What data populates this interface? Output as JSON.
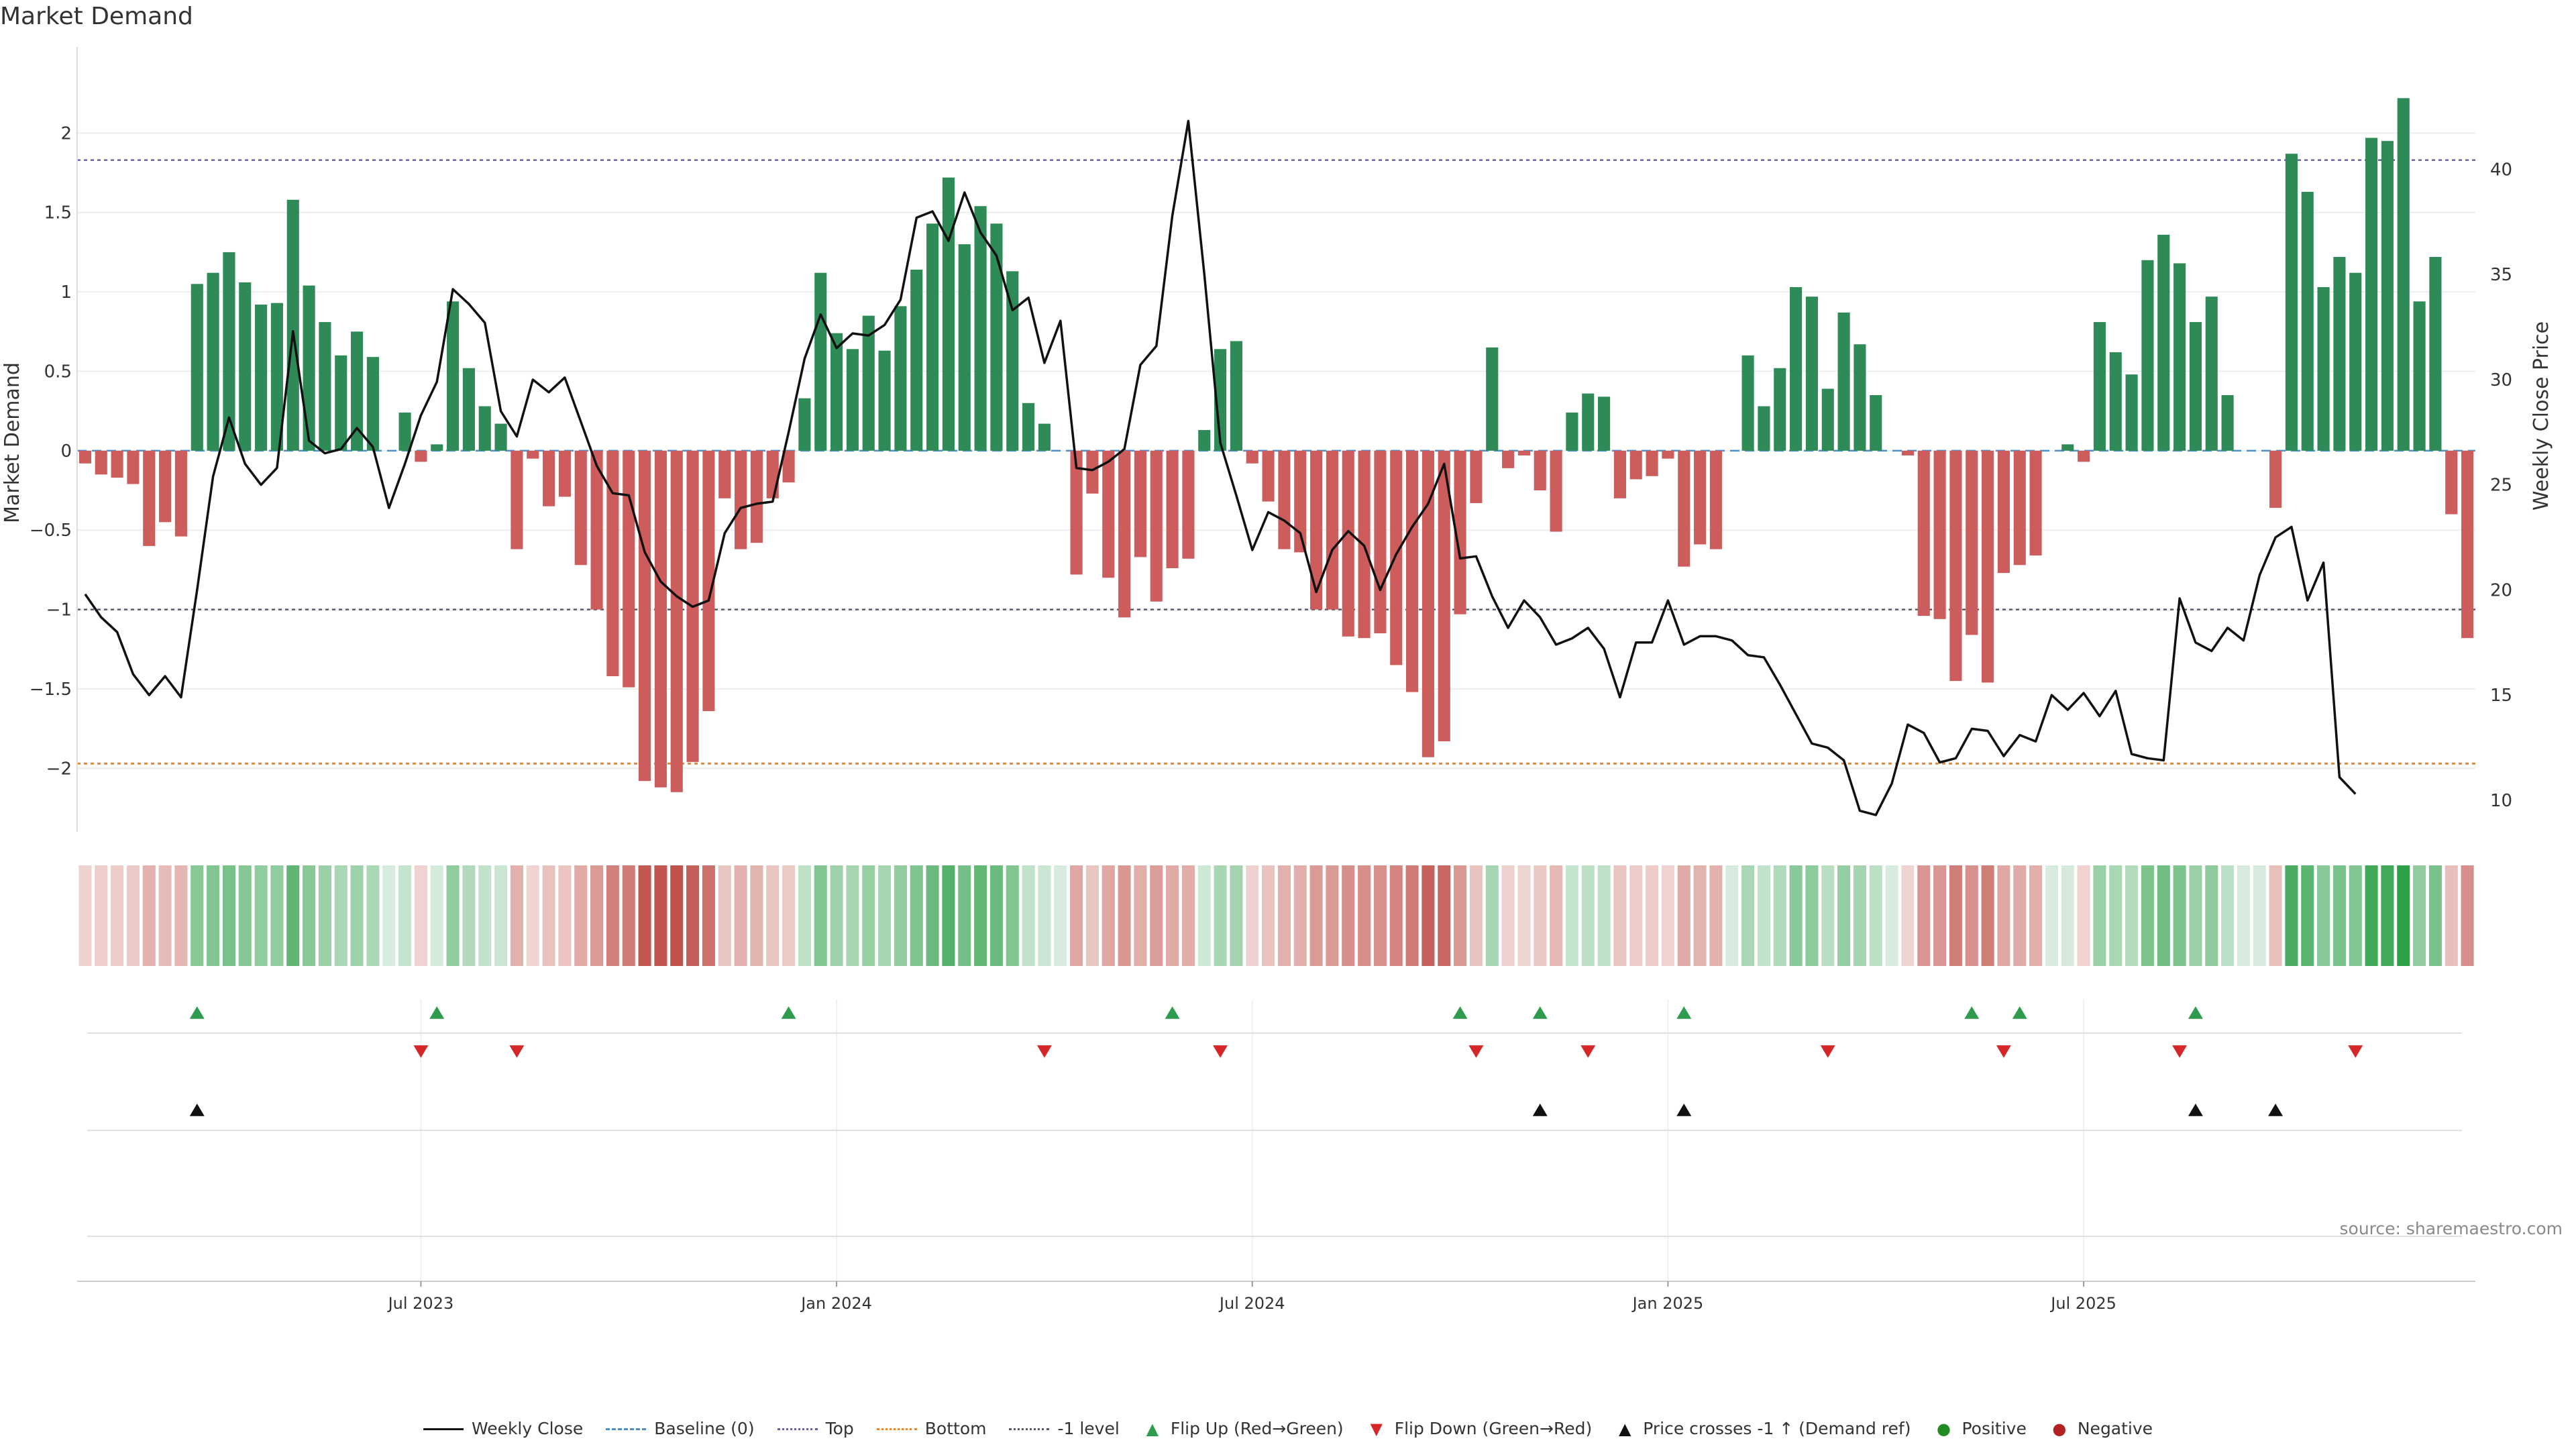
{
  "title": "Market Demand",
  "source": "source: sharemaestro.com",
  "colors": {
    "positive_bar": "#2e8b57",
    "negative_bar": "#cd5c5c",
    "price_line": "#111111",
    "top_line": "#6c5fa3",
    "bottom_line": "#e8872e",
    "minus1_line": "#555a6e",
    "flip_up": "#2e9b4e",
    "flip_down": "#d62728",
    "cross": "#111111",
    "positive_dot": "#228b22",
    "negative_dot": "#b22222",
    "baseline": "#4a8fc7"
  },
  "chart_data": {
    "type": "bar",
    "title": "Market Demand",
    "ylabel": "Market Demand",
    "y2label": "Weekly Close Price",
    "ylim": [
      -2.4,
      2.5
    ],
    "y2lim": [
      8.5,
      45.5
    ],
    "yticks": [
      2,
      1.5,
      1,
      0.5,
      0,
      -0.5,
      -1,
      -1.5,
      -2
    ],
    "ytick_labels": [
      "2",
      "1.5",
      "1",
      "0.5",
      "0",
      "−0.5",
      "−1",
      "−1.5",
      "−2"
    ],
    "y2ticks": [
      40,
      35,
      30,
      25,
      20,
      15,
      10
    ],
    "xtick_labels": [
      "Jul 2023",
      "Jan 2024",
      "Jul 2024",
      "Jan 2025",
      "Jul 2025"
    ],
    "xtick_weeks": [
      21,
      47,
      73,
      99,
      125
    ],
    "reference_lines": {
      "top": 1.83,
      "bottom": -1.97,
      "minus1": -1.0,
      "baseline": 0
    },
    "demand": [
      -0.08,
      -0.15,
      -0.17,
      -0.21,
      -0.6,
      -0.45,
      -0.54,
      1.05,
      1.12,
      1.25,
      1.06,
      0.92,
      0.93,
      1.58,
      1.04,
      0.81,
      0.6,
      0.75,
      0.59,
      0.0,
      0.24,
      -0.07,
      0.04,
      0.94,
      0.52,
      0.28,
      0.17,
      -0.62,
      -0.05,
      -0.35,
      -0.29,
      -0.72,
      -1.0,
      -1.42,
      -1.49,
      -2.08,
      -2.12,
      -2.15,
      -1.96,
      -1.64,
      -0.3,
      -0.62,
      -0.58,
      -0.3,
      -0.2,
      0.33,
      1.12,
      0.74,
      0.64,
      0.85,
      0.63,
      0.91,
      1.14,
      1.43,
      1.72,
      1.3,
      1.54,
      1.43,
      1.13,
      0.3,
      0.17,
      0.0,
      -0.78,
      -0.27,
      -0.8,
      -1.05,
      -0.67,
      -0.95,
      -0.74,
      -0.68,
      0.13,
      0.64,
      0.69,
      -0.08,
      -0.32,
      -0.62,
      -0.64,
      -1.0,
      -1.0,
      -1.17,
      -1.18,
      -1.15,
      -1.35,
      -1.52,
      -1.93,
      -1.83,
      -1.03,
      -0.33,
      0.65,
      -0.11,
      -0.03,
      -0.25,
      -0.51,
      0.24,
      0.36,
      0.34,
      -0.3,
      -0.18,
      -0.16,
      -0.05,
      -0.73,
      -0.59,
      -0.62,
      0.0,
      0.6,
      0.28,
      0.52,
      1.03,
      0.97,
      0.39,
      0.87,
      0.67,
      0.35,
      0.0,
      -0.03,
      -1.04,
      -1.06,
      -1.45,
      -1.16,
      -1.46,
      -0.77,
      -0.72,
      -0.66,
      0.0,
      0.04,
      -0.07,
      0.81,
      0.62,
      0.48,
      1.2,
      1.36,
      1.18,
      0.81,
      0.97,
      0.35,
      0.0,
      0.0,
      -0.36,
      1.87,
      1.63,
      1.03,
      1.22,
      1.12,
      1.97,
      1.95,
      2.22,
      0.94,
      1.22,
      -0.4,
      -1.18
    ],
    "price": [
      19.8,
      18.7,
      18.0,
      16.0,
      15.0,
      15.9,
      14.9,
      20.0,
      25.4,
      28.2,
      26.0,
      25.0,
      25.8,
      32.3,
      27.1,
      26.5,
      26.7,
      27.7,
      26.8,
      23.9,
      26.0,
      28.3,
      29.9,
      34.3,
      33.6,
      32.7,
      28.5,
      27.3,
      30.0,
      29.4,
      30.1,
      28.0,
      25.9,
      24.6,
      24.5,
      21.8,
      20.4,
      19.7,
      19.2,
      19.5,
      22.7,
      23.9,
      24.1,
      24.2,
      27.5,
      31.0,
      33.1,
      31.5,
      32.2,
      32.1,
      32.6,
      33.8,
      37.7,
      38.0,
      36.6,
      38.9,
      37.0,
      35.9,
      33.3,
      33.9,
      30.8,
      32.8,
      25.8,
      25.7,
      26.1,
      26.7,
      30.7,
      31.6,
      37.8,
      42.3,
      35.0,
      27.0,
      24.5,
      21.9,
      23.7,
      23.3,
      22.7,
      19.9,
      21.9,
      22.8,
      22.1,
      20.0,
      21.7,
      23.0,
      24.1,
      26.0,
      21.5,
      21.6,
      19.7,
      18.2,
      19.5,
      18.7,
      17.4,
      17.7,
      18.2,
      17.2,
      14.9,
      17.5,
      17.5,
      19.5,
      17.4,
      17.8,
      17.8,
      17.6,
      16.9,
      16.8,
      15.5,
      14.1,
      12.7,
      12.5,
      11.9,
      9.5,
      9.3,
      10.8,
      13.6,
      13.2,
      11.8,
      12.0,
      13.4,
      13.3,
      12.1,
      13.1,
      12.8,
      15.0,
      14.3,
      15.1,
      14.0,
      15.2,
      12.2,
      12.0,
      11.9,
      19.6,
      17.5,
      17.1,
      18.2,
      17.6,
      20.7,
      22.5,
      23.0,
      19.5,
      21.3,
      11.1,
      10.3
    ],
    "heat_values": [
      -0.08,
      -0.15,
      -0.17,
      -0.21,
      -0.6,
      -0.45,
      -0.54,
      1.05,
      1.12,
      1.25,
      1.06,
      0.92,
      0.93,
      1.58,
      1.04,
      0.81,
      0.6,
      0.75,
      0.59,
      0.0,
      0.24,
      -0.07,
      0.04,
      0.94,
      0.52,
      0.28,
      0.17,
      -0.62,
      -0.05,
      -0.35,
      -0.29,
      -0.72,
      -1.0,
      -1.42,
      -1.49,
      -2.08,
      -2.12,
      -2.15,
      -1.96,
      -1.64,
      -0.3,
      -0.62,
      -0.58,
      -0.3,
      -0.2,
      0.33,
      1.12,
      0.74,
      0.64,
      0.85,
      0.63,
      0.91,
      1.14,
      1.43,
      1.72,
      1.3,
      1.54,
      1.43,
      1.13,
      0.3,
      0.17,
      0.0,
      -0.78,
      -0.27,
      -0.8,
      -1.05,
      -0.67,
      -0.95,
      -0.74,
      -0.68,
      0.13,
      0.64,
      0.69,
      -0.08,
      -0.32,
      -0.62,
      -0.64,
      -1.0,
      -1.0,
      -1.17,
      -1.18,
      -1.15,
      -1.35,
      -1.52,
      -1.93,
      -1.83,
      -1.03,
      -0.33,
      0.65,
      -0.11,
      -0.03,
      -0.25,
      -0.51,
      0.24,
      0.36,
      0.34,
      -0.3,
      -0.18,
      -0.16,
      -0.05,
      -0.73,
      -0.59,
      -0.62,
      0.0,
      0.6,
      0.28,
      0.52,
      1.03,
      0.97,
      0.39,
      0.87,
      0.67,
      0.35,
      0.0,
      -0.03,
      -1.04,
      -1.06,
      -1.45,
      -1.16,
      -1.46,
      -0.77,
      -0.72,
      -0.66,
      0.0,
      0.04,
      -0.07,
      0.81,
      0.62,
      0.48,
      1.2,
      1.36,
      1.18,
      0.81,
      0.97,
      0.35,
      0.0,
      0.0,
      -0.36,
      1.87,
      1.63,
      1.03,
      1.22,
      1.12,
      1.97,
      1.95,
      2.22,
      0.94,
      1.22,
      -0.4,
      -1.18
    ],
    "flip_up_weeks": [
      7,
      22,
      44,
      68,
      86,
      91,
      100,
      118,
      121,
      132
    ],
    "flip_down_weeks": [
      21,
      27,
      60,
      71,
      87,
      94,
      109,
      120,
      131,
      142
    ],
    "cross_weeks": [
      7,
      91,
      100,
      132,
      137
    ]
  },
  "legend": [
    {
      "label": "Weekly Close",
      "style": "solid"
    },
    {
      "label": "Baseline (0)",
      "style": "dash-blue"
    },
    {
      "label": "Top",
      "style": "dot-purple"
    },
    {
      "label": "Bottom",
      "style": "dot-orange"
    },
    {
      "label": "-1 level",
      "style": "dot-gray"
    },
    {
      "label": "Flip Up (Red→Green)",
      "symbol": "▲",
      "color": "#2e9b4e"
    },
    {
      "label": "Flip Down (Green→Red)",
      "symbol": "▼",
      "color": "#d62728"
    },
    {
      "label": "Price crosses -1 ↑ (Demand ref)",
      "symbol": "▲",
      "color": "#111111"
    },
    {
      "label": "Positive",
      "symbol": "●",
      "color": "#228b22"
    },
    {
      "label": "Negative",
      "symbol": "●",
      "color": "#b22222"
    }
  ]
}
